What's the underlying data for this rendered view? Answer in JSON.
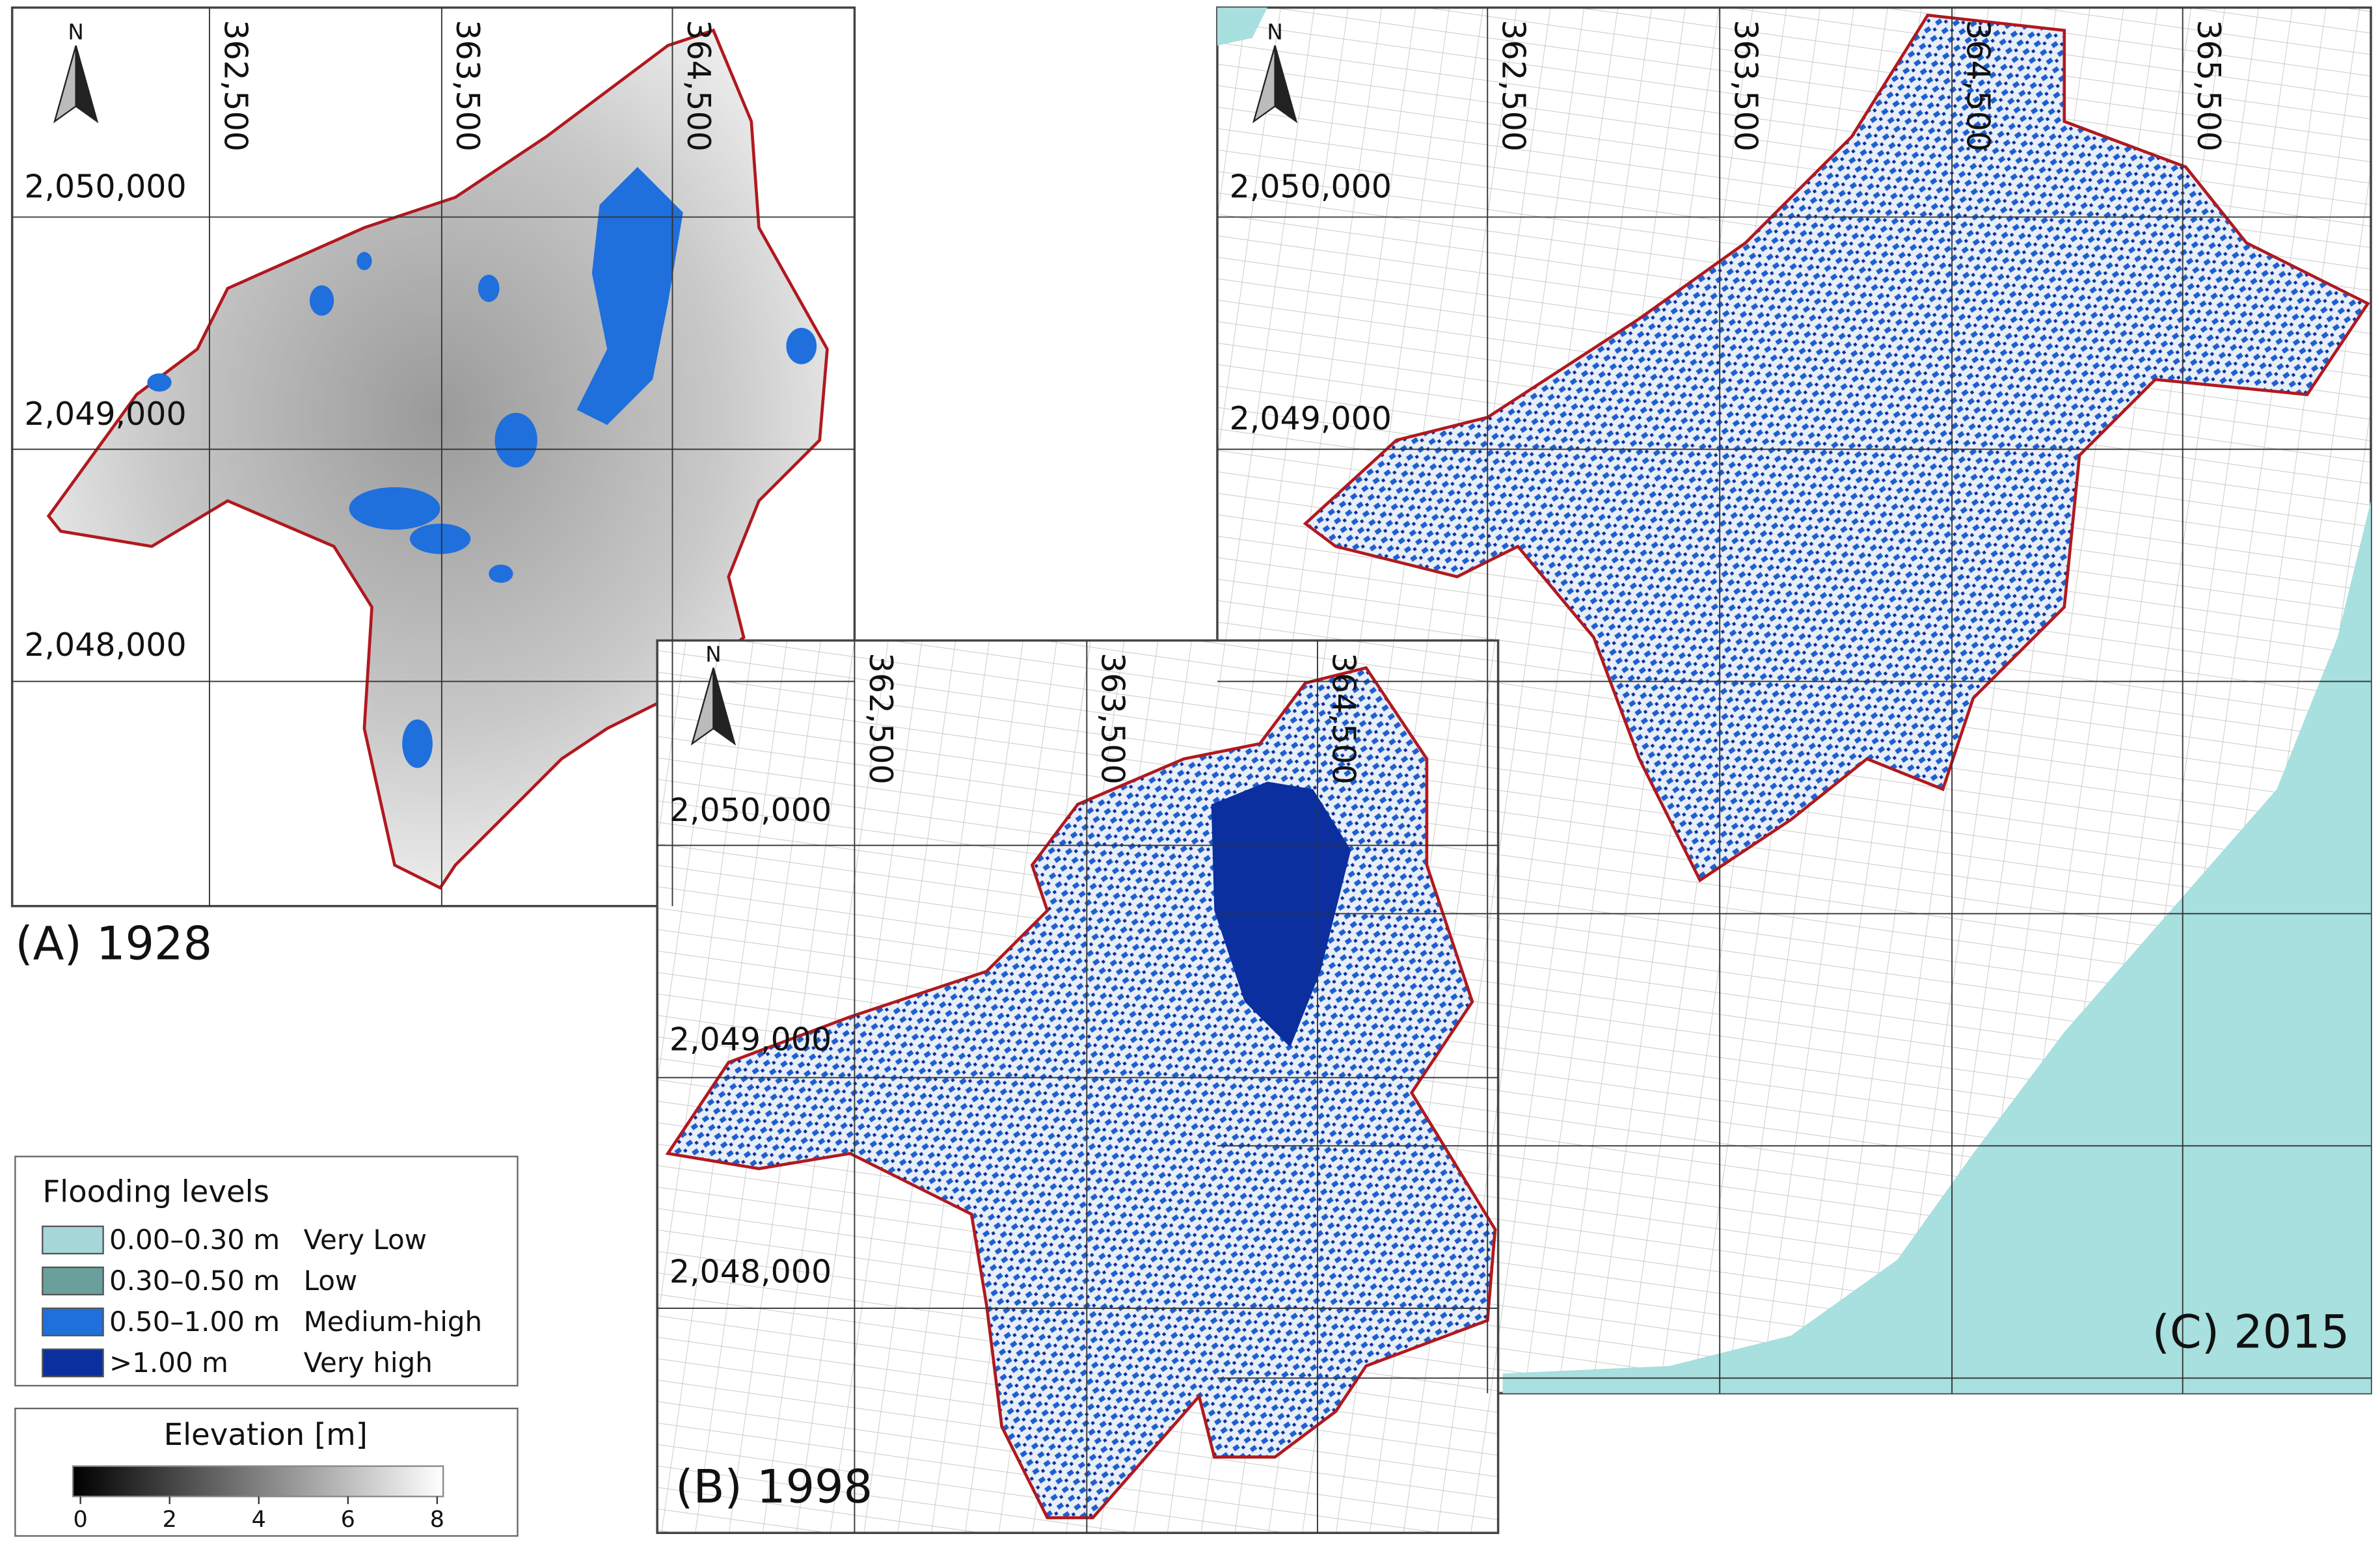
{
  "panels": [
    {
      "label": "(A) 1928",
      "north": "N",
      "x_ticks": [
        "362,500",
        "363,500",
        "364,500"
      ],
      "y_ticks": [
        "2,050,000",
        "2,049,000",
        "2,048,000"
      ]
    },
    {
      "label": "(B) 1998",
      "north": "N",
      "x_ticks": [
        "362,500",
        "363,500",
        "364,500"
      ],
      "y_ticks": [
        "2,050,000",
        "2,049,000",
        "2,048,000"
      ]
    },
    {
      "label": "(C) 2015",
      "north": "N",
      "x_ticks": [
        "362,500",
        "363,500",
        "364,500",
        "365,500"
      ],
      "y_ticks": [
        "2,050,000",
        "2,049,000"
      ]
    }
  ],
  "legend": {
    "title": "Flooding levels",
    "items": [
      {
        "range": "0.00–0.30 m",
        "level": "Very Low",
        "color": "#a6d6d8"
      },
      {
        "range": "0.30–0.50 m",
        "level": "Low",
        "color": "#6b9f9c"
      },
      {
        "range": "0.50–1.00 m",
        "level": "Medium-high",
        "color": "#1f6fdc"
      },
      {
        "range": ">1.00 m",
        "level": "Very high",
        "color": "#0b2f9f"
      }
    ]
  },
  "elevation": {
    "title": "Elevation [m]",
    "ticks": [
      0,
      2,
      4,
      6,
      8
    ]
  }
}
